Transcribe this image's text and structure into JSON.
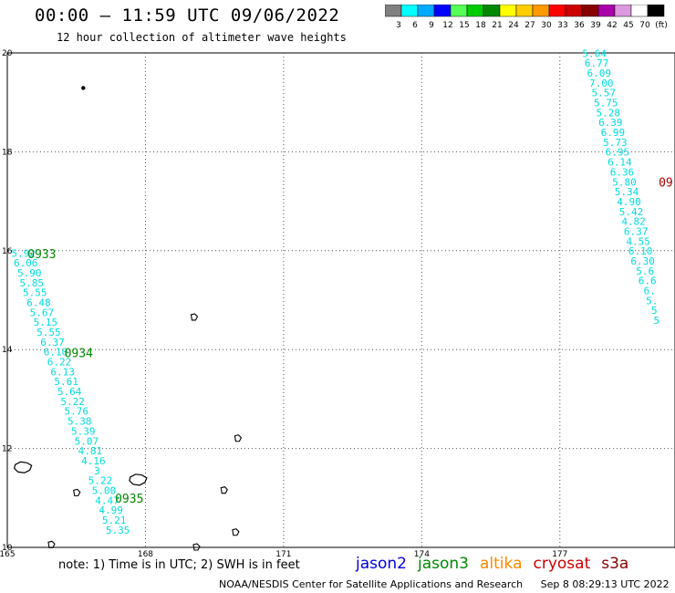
{
  "header": {
    "title": "00:00 – 11:59 UTC 09/06/2022",
    "subtitle": "12 hour collection of altimeter wave heights"
  },
  "colorbar": {
    "colors": [
      "#808080",
      "#00ffff",
      "#00aaff",
      "#0000ff",
      "#55ff55",
      "#00cc00",
      "#008800",
      "#ffff00",
      "#ffcc00",
      "#ff9900",
      "#ff0000",
      "#cc0000",
      "#880000",
      "#aa00aa",
      "#dd99dd",
      "#ffffff",
      "#000000"
    ],
    "labels": [
      "3",
      "6",
      "9",
      "12",
      "15",
      "18",
      "21",
      "24",
      "27",
      "30",
      "33",
      "36",
      "39",
      "42",
      "45",
      "70",
      "(ft)"
    ]
  },
  "map": {
    "lon_range": [
      165,
      179.5
    ],
    "lat_range": [
      10,
      20
    ],
    "x_ticks": [
      "165",
      "168",
      "171",
      "174",
      "177"
    ],
    "y_ticks": [
      "20",
      "18",
      "16",
      "14",
      "12",
      "10"
    ],
    "grid": "dotted",
    "colors": {
      "wave_label": "#00dddd",
      "time_label_green": "#008800",
      "time_label_red": "#aa0000"
    }
  },
  "chart_data": {
    "type": "scatter",
    "description_units": "longitude (deg E), latitude (deg N), significant wave height (ft)",
    "series": [
      {
        "name": "jason3",
        "time_labels": [
          {
            "text": "0933",
            "lon": 165.75,
            "lat": 15.85
          },
          {
            "text": "0934",
            "lon": 166.55,
            "lat": 13.85
          },
          {
            "text": "0935",
            "lon": 167.65,
            "lat": 10.9
          }
        ],
        "points": [
          {
            "lon": 165.35,
            "lat": 15.88,
            "value": "5.92"
          },
          {
            "lon": 165.4,
            "lat": 15.68,
            "value": "6.06"
          },
          {
            "lon": 165.48,
            "lat": 15.48,
            "value": "5.90"
          },
          {
            "lon": 165.53,
            "lat": 15.28,
            "value": "5.85"
          },
          {
            "lon": 165.6,
            "lat": 15.08,
            "value": "5.55"
          },
          {
            "lon": 165.68,
            "lat": 14.88,
            "value": "6.48"
          },
          {
            "lon": 165.75,
            "lat": 14.68,
            "value": "5.67"
          },
          {
            "lon": 165.83,
            "lat": 14.48,
            "value": "5.15"
          },
          {
            "lon": 165.9,
            "lat": 14.28,
            "value": "5.55"
          },
          {
            "lon": 165.98,
            "lat": 14.08,
            "value": "6.37"
          },
          {
            "lon": 166.05,
            "lat": 13.88,
            "value": "6.10"
          },
          {
            "lon": 166.13,
            "lat": 13.68,
            "value": "6.22"
          },
          {
            "lon": 166.2,
            "lat": 13.48,
            "value": "6.13"
          },
          {
            "lon": 166.28,
            "lat": 13.28,
            "value": "5.61"
          },
          {
            "lon": 166.35,
            "lat": 13.08,
            "value": "5.64"
          },
          {
            "lon": 166.42,
            "lat": 12.88,
            "value": "5.22"
          },
          {
            "lon": 166.5,
            "lat": 12.68,
            "value": "5.76"
          },
          {
            "lon": 166.57,
            "lat": 12.48,
            "value": "5.38"
          },
          {
            "lon": 166.65,
            "lat": 12.28,
            "value": "5.39"
          },
          {
            "lon": 166.72,
            "lat": 12.08,
            "value": "5.07"
          },
          {
            "lon": 166.8,
            "lat": 11.88,
            "value": "4.81"
          },
          {
            "lon": 166.87,
            "lat": 11.68,
            "value": "4.16"
          },
          {
            "lon": 166.95,
            "lat": 11.48,
            "value": "3"
          },
          {
            "lon": 167.02,
            "lat": 11.28,
            "value": "5.22"
          },
          {
            "lon": 167.1,
            "lat": 11.08,
            "value": "5.00"
          },
          {
            "lon": 167.17,
            "lat": 10.88,
            "value": "4.47"
          },
          {
            "lon": 167.25,
            "lat": 10.68,
            "value": "4.99"
          },
          {
            "lon": 167.32,
            "lat": 10.48,
            "value": "5.21"
          },
          {
            "lon": 167.4,
            "lat": 10.28,
            "value": "5.35"
          }
        ]
      },
      {
        "name": "cryosat",
        "time_labels": [
          {
            "text": "09",
            "lon": 179.3,
            "lat": 17.3
          }
        ],
        "points": [
          {
            "lon": 177.75,
            "lat": 19.92,
            "value": "5.64"
          },
          {
            "lon": 177.8,
            "lat": 19.72,
            "value": "6.77"
          },
          {
            "lon": 177.85,
            "lat": 19.52,
            "value": "6.09"
          },
          {
            "lon": 177.9,
            "lat": 19.32,
            "value": "7.00"
          },
          {
            "lon": 177.95,
            "lat": 19.12,
            "value": "5.57"
          },
          {
            "lon": 178.0,
            "lat": 18.92,
            "value": "5.75"
          },
          {
            "lon": 178.05,
            "lat": 18.72,
            "value": "5.28"
          },
          {
            "lon": 178.1,
            "lat": 18.52,
            "value": "6.39"
          },
          {
            "lon": 178.15,
            "lat": 18.32,
            "value": "6.99"
          },
          {
            "lon": 178.2,
            "lat": 18.12,
            "value": "5.73"
          },
          {
            "lon": 178.25,
            "lat": 17.92,
            "value": "6.95"
          },
          {
            "lon": 178.3,
            "lat": 17.72,
            "value": "6.14"
          },
          {
            "lon": 178.35,
            "lat": 17.52,
            "value": "6.36"
          },
          {
            "lon": 178.4,
            "lat": 17.32,
            "value": "5.80"
          },
          {
            "lon": 178.45,
            "lat": 17.12,
            "value": "5.34"
          },
          {
            "lon": 178.5,
            "lat": 16.92,
            "value": "4.90"
          },
          {
            "lon": 178.55,
            "lat": 16.72,
            "value": "5.42"
          },
          {
            "lon": 178.6,
            "lat": 16.52,
            "value": "4.82"
          },
          {
            "lon": 178.65,
            "lat": 16.32,
            "value": "6.37"
          },
          {
            "lon": 178.7,
            "lat": 16.12,
            "value": "4.55"
          },
          {
            "lon": 178.75,
            "lat": 15.92,
            "value": "6.10"
          },
          {
            "lon": 178.8,
            "lat": 15.72,
            "value": "6.30"
          },
          {
            "lon": 178.85,
            "lat": 15.52,
            "value": "5.6"
          },
          {
            "lon": 178.9,
            "lat": 15.32,
            "value": "6.6"
          },
          {
            "lon": 178.95,
            "lat": 15.12,
            "value": "6."
          },
          {
            "lon": 179.0,
            "lat": 14.92,
            "value": "5."
          },
          {
            "lon": 179.05,
            "lat": 14.72,
            "value": "5"
          },
          {
            "lon": 179.1,
            "lat": 14.52,
            "value": "5"
          }
        ]
      }
    ],
    "xlabel": "",
    "ylabel": ""
  },
  "islands": [
    {
      "name": "island-wake",
      "lon": 166.65,
      "lat": 19.29,
      "shape": "dot"
    },
    {
      "name": "island-a",
      "lon": 169.05,
      "lat": 14.65,
      "shape": "small"
    },
    {
      "name": "island-b",
      "lon": 170.0,
      "lat": 12.2,
      "shape": "small"
    },
    {
      "name": "island-c",
      "lon": 165.35,
      "lat": 11.6,
      "shape": "atoll"
    },
    {
      "name": "island-d",
      "lon": 167.85,
      "lat": 11.35,
      "shape": "atoll"
    },
    {
      "name": "island-e",
      "lon": 166.5,
      "lat": 11.1,
      "shape": "small"
    },
    {
      "name": "island-f",
      "lon": 169.7,
      "lat": 11.15,
      "shape": "small"
    },
    {
      "name": "island-g",
      "lon": 169.95,
      "lat": 10.3,
      "shape": "small"
    },
    {
      "name": "island-h",
      "lon": 165.95,
      "lat": 10.05,
      "shape": "small"
    },
    {
      "name": "island-i",
      "lon": 169.1,
      "lat": 10.0,
      "shape": "small"
    }
  ],
  "footer": {
    "note": "note:  1) Time is in UTC; 2) SWH is in feet",
    "satellites": [
      {
        "label": "jason2",
        "color": "#0000dd"
      },
      {
        "label": "jason3",
        "color": "#008800"
      },
      {
        "label": "altika",
        "color": "#ff8800"
      },
      {
        "label": "cryosat",
        "color": "#cc0000"
      },
      {
        "label": "s3a",
        "color": "#880000"
      }
    ],
    "credit": "NOAA/NESDIS Center for Satellite Applications and Research",
    "timestamp": "Sep  8 08:29:13 UTC 2022"
  }
}
